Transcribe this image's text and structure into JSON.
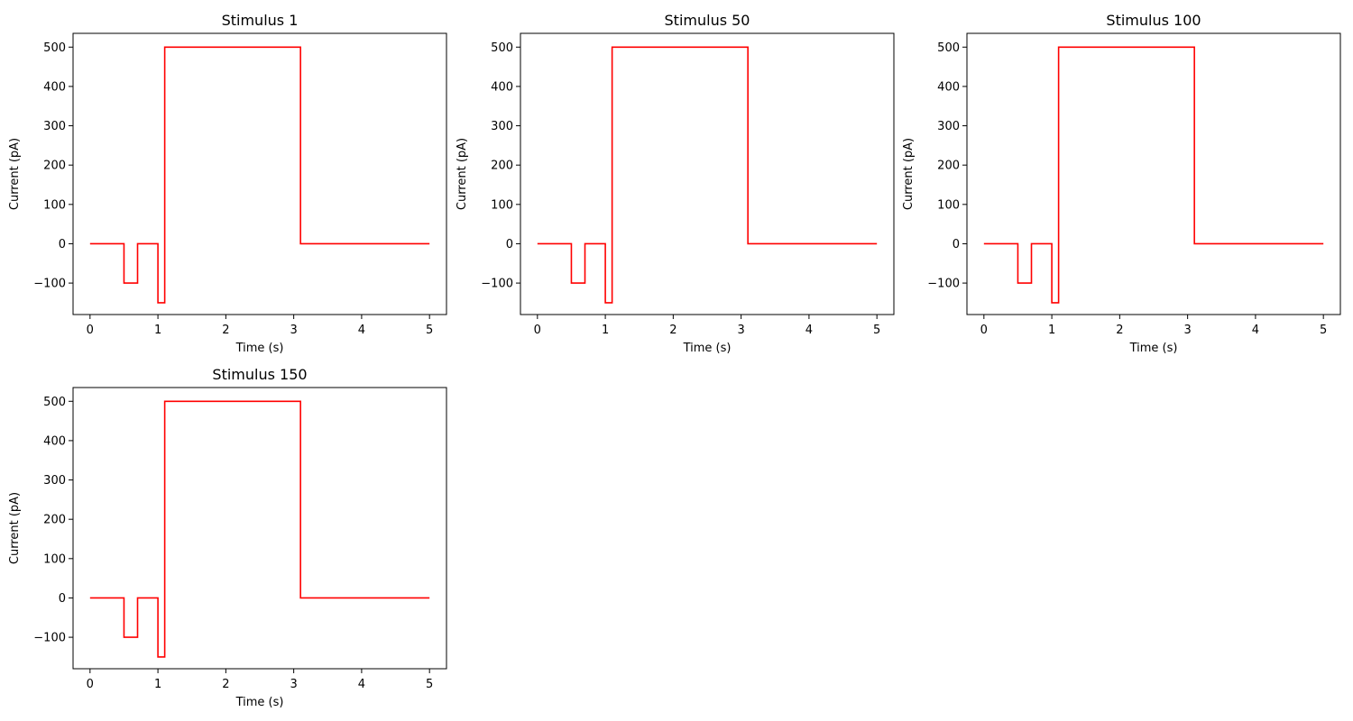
{
  "figure": {
    "line_color": "#ff0000",
    "background": "#ffffff"
  },
  "chart_data": [
    {
      "type": "line",
      "title": "Stimulus 1",
      "xlabel": "Time (s)",
      "ylabel": "Current (pA)",
      "xlim": [
        -0.25,
        5.25
      ],
      "ylim": [
        -180,
        535
      ],
      "xticks": [
        0,
        1,
        2,
        3,
        4,
        5
      ],
      "yticks": [
        -100,
        0,
        100,
        200,
        300,
        400,
        500
      ],
      "grid": false,
      "legend": "none",
      "series": [
        {
          "x": [
            0,
            0.5,
            0.5,
            0.7,
            0.7,
            1.0,
            1.0,
            1.1,
            1.1,
            3.1,
            3.1,
            5.0
          ],
          "y": [
            0,
            0,
            -100,
            -100,
            0,
            0,
            -150,
            -150,
            500,
            500,
            0,
            0
          ]
        }
      ]
    },
    {
      "type": "line",
      "title": "Stimulus 50",
      "xlabel": "Time (s)",
      "ylabel": "Current (pA)",
      "xlim": [
        -0.25,
        5.25
      ],
      "ylim": [
        -180,
        535
      ],
      "xticks": [
        0,
        1,
        2,
        3,
        4,
        5
      ],
      "yticks": [
        -100,
        0,
        100,
        200,
        300,
        400,
        500
      ],
      "grid": false,
      "legend": "none",
      "series": [
        {
          "x": [
            0,
            0.5,
            0.5,
            0.7,
            0.7,
            1.0,
            1.0,
            1.1,
            1.1,
            3.1,
            3.1,
            5.0
          ],
          "y": [
            0,
            0,
            -100,
            -100,
            0,
            0,
            -150,
            -150,
            500,
            500,
            0,
            0
          ]
        }
      ]
    },
    {
      "type": "line",
      "title": "Stimulus 100",
      "xlabel": "Time (s)",
      "ylabel": "Current (pA)",
      "xlim": [
        -0.25,
        5.25
      ],
      "ylim": [
        -180,
        535
      ],
      "xticks": [
        0,
        1,
        2,
        3,
        4,
        5
      ],
      "yticks": [
        -100,
        0,
        100,
        200,
        300,
        400,
        500
      ],
      "grid": false,
      "legend": "none",
      "series": [
        {
          "x": [
            0,
            0.5,
            0.5,
            0.7,
            0.7,
            1.0,
            1.0,
            1.1,
            1.1,
            3.1,
            3.1,
            5.0
          ],
          "y": [
            0,
            0,
            -100,
            -100,
            0,
            0,
            -150,
            -150,
            500,
            500,
            0,
            0
          ]
        }
      ]
    },
    {
      "type": "line",
      "title": "Stimulus 150",
      "xlabel": "Time (s)",
      "ylabel": "Current (pA)",
      "xlim": [
        -0.25,
        5.25
      ],
      "ylim": [
        -180,
        535
      ],
      "xticks": [
        0,
        1,
        2,
        3,
        4,
        5
      ],
      "yticks": [
        -100,
        0,
        100,
        200,
        300,
        400,
        500
      ],
      "grid": false,
      "legend": "none",
      "series": [
        {
          "x": [
            0,
            0.5,
            0.5,
            0.7,
            0.7,
            1.0,
            1.0,
            1.1,
            1.1,
            3.1,
            3.1,
            5.0
          ],
          "y": [
            0,
            0,
            -100,
            -100,
            0,
            0,
            -150,
            -150,
            500,
            500,
            0,
            0
          ]
        }
      ]
    }
  ]
}
